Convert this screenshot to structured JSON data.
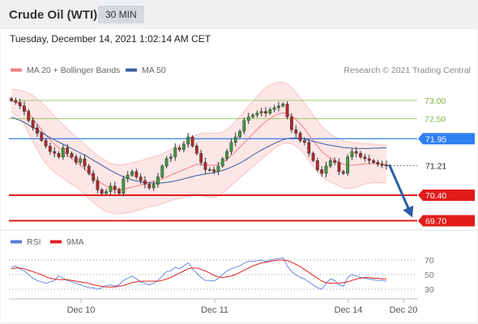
{
  "header": {
    "title": "Crude Oil (WTI)",
    "timeframe": "30 MIN"
  },
  "timestamp": "Tuesday, December 14, 2021 1:02:14 AM CET",
  "legend": {
    "bollinger": "MA 20 + Bollinger Bands",
    "ma50": "MA 50",
    "rsi": "RSI",
    "rsi_ma": "9MA"
  },
  "copyright": "Research © 2021 Trading Central",
  "colors": {
    "bollinger": "#f08080",
    "bollinger_fill": "#fde3e3",
    "ma50": "#3a5f9e",
    "rsi": "#5b7fd6",
    "rsi_ma": "#e02020",
    "pivot": "#2f7ff0",
    "support": "#e21b1b",
    "resistance": "#9ccc65",
    "candle_up": "#3e9b3e",
    "candle_down": "#b02a2a",
    "arrow": "#2a5ea8"
  },
  "chart_data": [
    {
      "type": "candlestick",
      "ylim": [
        69.5,
        73.3
      ],
      "x_ticks": [
        "Dec 10",
        "Dec 11",
        "Dec 14",
        "Dec 20"
      ],
      "levels": [
        {
          "value": 73.0,
          "label": "73.00",
          "kind": "resistance"
        },
        {
          "value": 72.5,
          "label": "72.50",
          "kind": "resistance"
        },
        {
          "value": 71.95,
          "label": "71.95",
          "kind": "pivot"
        },
        {
          "value": 71.21,
          "label": "71.21",
          "kind": "last"
        },
        {
          "value": 70.4,
          "label": "70.40",
          "kind": "support"
        },
        {
          "value": 69.7,
          "label": "69.70",
          "kind": "support"
        }
      ],
      "close": [
        73.0,
        72.95,
        72.85,
        72.7,
        72.45,
        72.25,
        72.1,
        71.9,
        71.75,
        71.6,
        71.55,
        71.45,
        71.7,
        71.55,
        71.45,
        71.3,
        71.4,
        71.2,
        71.0,
        70.8,
        70.55,
        70.45,
        70.5,
        70.65,
        70.55,
        70.45,
        70.85,
        70.95,
        71.05,
        70.9,
        70.8,
        70.7,
        70.6,
        70.7,
        70.9,
        71.2,
        71.4,
        71.45,
        71.7,
        71.65,
        71.8,
        72.0,
        71.75,
        71.55,
        71.3,
        71.1,
        71.1,
        71.05,
        71.2,
        71.4,
        71.6,
        71.85,
        72.0,
        72.15,
        72.45,
        72.55,
        72.6,
        72.65,
        72.7,
        72.65,
        72.75,
        72.8,
        72.85,
        72.9,
        72.55,
        72.2,
        72.1,
        71.9,
        71.85,
        71.55,
        71.35,
        71.1,
        71.0,
        71.2,
        71.35,
        71.3,
        71.05,
        71.0,
        71.45,
        71.6,
        71.55,
        71.45,
        71.4,
        71.35,
        71.3,
        71.25,
        71.23,
        71.21
      ],
      "bollinger": {
        "mid": [
          73.0,
          72.95,
          72.9,
          72.8,
          72.65,
          72.5,
          72.35,
          72.2,
          72.05,
          71.92,
          71.8,
          71.7,
          71.6,
          71.5,
          71.4,
          71.32,
          71.22,
          71.12,
          71.0,
          70.9,
          70.8,
          70.72,
          70.65,
          70.6,
          70.57,
          70.56,
          70.57,
          70.59,
          70.62,
          70.65,
          70.68,
          70.72,
          70.75,
          70.78,
          70.8,
          70.85,
          70.9,
          70.95,
          71.0,
          71.05,
          71.1,
          71.15,
          71.2,
          71.25,
          71.25,
          71.23,
          71.22,
          71.22,
          71.25,
          71.3,
          71.38,
          71.48,
          71.6,
          71.72,
          71.84,
          71.96,
          72.08,
          72.2,
          72.32,
          72.42,
          72.5,
          72.58,
          72.63,
          72.66,
          72.64,
          72.58,
          72.48,
          72.36,
          72.22,
          72.06,
          71.9,
          71.75,
          71.6,
          71.5,
          71.42,
          71.36,
          71.3,
          71.25,
          71.23,
          71.22,
          71.23,
          71.25,
          71.26,
          71.27,
          71.27,
          71.27,
          71.26,
          71.25
        ],
        "upper": [
          73.3,
          73.3,
          73.28,
          73.25,
          73.2,
          73.13,
          73.05,
          72.95,
          72.83,
          72.7,
          72.57,
          72.45,
          72.33,
          72.22,
          72.11,
          72.0,
          71.9,
          71.8,
          71.69,
          71.59,
          71.49,
          71.41,
          71.34,
          71.28,
          71.24,
          71.23,
          71.24,
          71.26,
          71.29,
          71.32,
          71.35,
          71.39,
          71.42,
          71.45,
          71.48,
          71.53,
          71.59,
          71.65,
          71.72,
          71.79,
          71.86,
          71.93,
          72.0,
          72.06,
          72.09,
          72.1,
          72.1,
          72.1,
          72.11,
          72.13,
          72.2,
          72.3,
          72.43,
          72.56,
          72.7,
          72.84,
          72.98,
          73.12,
          73.25,
          73.35,
          73.42,
          73.47,
          73.5,
          73.5,
          73.45,
          73.35,
          73.22,
          73.07,
          72.92,
          72.76,
          72.6,
          72.44,
          72.28,
          72.17,
          72.08,
          72.01,
          71.95,
          71.9,
          71.87,
          71.85,
          71.84,
          71.83,
          71.82,
          71.81,
          71.8,
          71.79,
          71.78,
          71.77
        ],
        "lower": [
          72.7,
          72.6,
          72.52,
          72.35,
          72.1,
          71.87,
          71.65,
          71.45,
          71.27,
          71.14,
          71.03,
          70.95,
          70.87,
          70.78,
          70.69,
          70.64,
          70.54,
          70.44,
          70.31,
          70.21,
          70.11,
          70.03,
          69.96,
          69.92,
          69.9,
          69.89,
          69.9,
          69.92,
          69.95,
          69.98,
          70.01,
          70.05,
          70.08,
          70.11,
          70.12,
          70.17,
          70.21,
          70.25,
          70.28,
          70.31,
          70.34,
          70.37,
          70.4,
          70.44,
          70.41,
          70.36,
          70.34,
          70.34,
          70.39,
          70.47,
          70.56,
          70.66,
          70.77,
          70.88,
          70.98,
          71.08,
          71.18,
          71.28,
          71.39,
          71.49,
          71.58,
          71.69,
          71.76,
          71.82,
          71.83,
          71.81,
          71.74,
          71.65,
          71.52,
          71.36,
          71.2,
          71.06,
          70.92,
          70.83,
          70.76,
          70.71,
          70.65,
          70.6,
          70.59,
          70.59,
          70.62,
          70.67,
          70.7,
          70.73,
          70.74,
          70.75,
          70.74,
          70.73
        ]
      },
      "ma50": [
        72.55,
        72.5,
        72.45,
        72.4,
        72.33,
        72.26,
        72.19,
        72.12,
        72.05,
        71.98,
        71.92,
        71.86,
        71.8,
        71.74,
        71.68,
        71.62,
        71.56,
        71.5,
        71.43,
        71.36,
        71.29,
        71.22,
        71.15,
        71.08,
        71.02,
        70.96,
        70.91,
        70.86,
        70.82,
        70.79,
        70.77,
        70.75,
        70.74,
        70.73,
        70.73,
        70.74,
        70.75,
        70.77,
        70.79,
        70.82,
        70.85,
        70.88,
        70.91,
        70.94,
        70.96,
        70.98,
        71.0,
        71.02,
        71.05,
        71.08,
        71.12,
        71.17,
        71.22,
        71.28,
        71.35,
        71.42,
        71.5,
        71.57,
        71.64,
        71.7,
        71.76,
        71.82,
        71.87,
        71.92,
        71.95,
        71.97,
        71.97,
        71.96,
        71.94,
        71.91,
        71.88,
        71.85,
        71.82,
        71.79,
        71.77,
        71.75,
        71.73,
        71.71,
        71.7,
        71.69,
        71.68,
        71.68,
        71.68,
        71.68,
        71.69,
        71.69,
        71.7,
        71.7
      ],
      "forecast": {
        "from": 71.21,
        "to": 69.7
      }
    },
    {
      "type": "line",
      "name": "RSI",
      "ylim": [
        20,
        80
      ],
      "y_ticks": [
        "70",
        "50",
        "30"
      ],
      "series": [
        {
          "name": "RSI",
          "values": [
            60,
            62,
            58,
            55,
            50,
            45,
            42,
            40,
            38,
            40,
            42,
            48,
            45,
            42,
            40,
            38,
            36,
            34,
            32,
            32,
            30,
            32,
            35,
            36,
            34,
            36,
            42,
            45,
            48,
            44,
            40,
            38,
            36,
            38,
            42,
            48,
            54,
            55,
            60,
            58,
            62,
            66,
            58,
            52,
            46,
            42,
            42,
            41,
            45,
            50,
            55,
            58,
            60,
            62,
            66,
            68,
            68,
            69,
            70,
            68,
            70,
            71,
            72,
            73,
            62,
            54,
            50,
            46,
            44,
            40,
            36,
            32,
            30,
            38,
            44,
            42,
            36,
            34,
            46,
            50,
            48,
            46,
            45,
            44,
            43,
            42,
            42,
            41
          ]
        },
        {
          "name": "9MA",
          "values": [
            58,
            59,
            59,
            58,
            56,
            54,
            52,
            50,
            47,
            45,
            44,
            43,
            43,
            43,
            42,
            41,
            40,
            39,
            38,
            36,
            35,
            34,
            33,
            33,
            33,
            34,
            35,
            37,
            39,
            40,
            41,
            41,
            41,
            41,
            41,
            42,
            44,
            46,
            49,
            52,
            55,
            58,
            59,
            59,
            57,
            55,
            52,
            49,
            47,
            46,
            47,
            48,
            50,
            53,
            56,
            59,
            62,
            64,
            66,
            67,
            68,
            69,
            70,
            70,
            69,
            67,
            64,
            61,
            57,
            53,
            49,
            45,
            41,
            39,
            38,
            38,
            38,
            39,
            40,
            42,
            44,
            45,
            46,
            46,
            45,
            45,
            44,
            44
          ]
        }
      ]
    }
  ]
}
